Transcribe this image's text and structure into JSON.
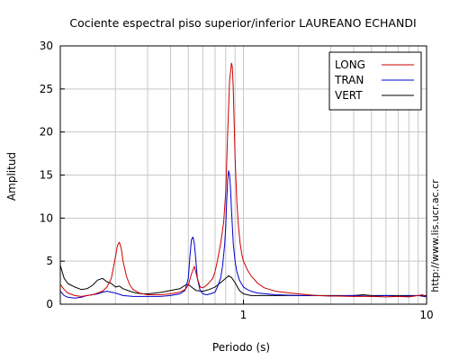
{
  "chart_data": {
    "type": "line",
    "title": "Cociente espectral piso superior/inferior LAUREANO ECHANDI",
    "xlabel": "Periodo (s)",
    "ylabel": "Amplitud",
    "xscale": "log",
    "xlim": [
      0.1,
      10
    ],
    "ylim": [
      0,
      30
    ],
    "grid": true,
    "legend_position": "top-right",
    "side_text": "http://www.lis.ucr.ac.cr",
    "x_ticks": [
      {
        "value": 1,
        "label": "1"
      },
      {
        "value": 10,
        "label": "10"
      }
    ],
    "y_ticks": [
      0,
      5,
      10,
      15,
      20,
      25,
      30
    ],
    "series": [
      {
        "name": "LONG",
        "color": "#cc0000",
        "x": [
          0.1,
          0.105,
          0.11,
          0.12,
          0.13,
          0.14,
          0.15,
          0.16,
          0.17,
          0.18,
          0.19,
          0.2,
          0.205,
          0.21,
          0.215,
          0.22,
          0.23,
          0.24,
          0.25,
          0.27,
          0.3,
          0.35,
          0.4,
          0.45,
          0.48,
          0.5,
          0.52,
          0.54,
          0.56,
          0.58,
          0.6,
          0.62,
          0.65,
          0.68,
          0.7,
          0.72,
          0.75,
          0.78,
          0.8,
          0.82,
          0.84,
          0.86,
          0.87,
          0.88,
          0.89,
          0.9,
          0.92,
          0.94,
          0.96,
          0.98,
          1.0,
          1.05,
          1.1,
          1.2,
          1.3,
          1.5,
          1.8,
          2.0,
          2.5,
          3.0,
          4.0,
          5.0,
          6.0,
          7.0,
          8.0,
          9.0,
          9.5,
          10.0
        ],
        "y": [
          2.3,
          1.7,
          1.3,
          1.0,
          0.9,
          1.0,
          1.1,
          1.3,
          1.5,
          2.0,
          3.0,
          5.5,
          6.8,
          7.2,
          6.5,
          5.0,
          3.2,
          2.2,
          1.7,
          1.3,
          1.1,
          1.1,
          1.2,
          1.4,
          1.7,
          2.2,
          3.5,
          4.4,
          3.0,
          2.0,
          1.9,
          2.1,
          2.5,
          3.0,
          3.8,
          5.0,
          7.0,
          9.5,
          13.0,
          20.0,
          26.0,
          28.0,
          27.5,
          25.0,
          21.0,
          17.0,
          12.0,
          9.0,
          7.0,
          5.8,
          5.0,
          4.0,
          3.3,
          2.4,
          1.9,
          1.5,
          1.3,
          1.2,
          1.0,
          0.95,
          0.9,
          0.9,
          0.85,
          0.9,
          0.85,
          1.0,
          1.1,
          0.8
        ]
      },
      {
        "name": "TRAN",
        "color": "#0000cc",
        "x": [
          0.1,
          0.105,
          0.11,
          0.12,
          0.13,
          0.14,
          0.15,
          0.16,
          0.17,
          0.18,
          0.19,
          0.2,
          0.22,
          0.25,
          0.3,
          0.35,
          0.4,
          0.45,
          0.48,
          0.5,
          0.51,
          0.52,
          0.53,
          0.54,
          0.55,
          0.56,
          0.58,
          0.6,
          0.63,
          0.66,
          0.7,
          0.72,
          0.75,
          0.77,
          0.79,
          0.8,
          0.81,
          0.82,
          0.83,
          0.84,
          0.85,
          0.86,
          0.87,
          0.88,
          0.9,
          0.92,
          0.95,
          1.0,
          1.05,
          1.1,
          1.2,
          1.5,
          2.0,
          2.5,
          3.0,
          4.0,
          5.0,
          6.0,
          7.0,
          8.0,
          9.0,
          10.0
        ],
        "y": [
          1.5,
          1.0,
          0.8,
          0.7,
          0.8,
          1.0,
          1.1,
          1.2,
          1.4,
          1.5,
          1.4,
          1.3,
          1.0,
          0.9,
          0.9,
          0.9,
          1.0,
          1.2,
          1.6,
          3.0,
          5.5,
          7.5,
          7.8,
          7.0,
          5.0,
          3.0,
          1.6,
          1.2,
          1.1,
          1.2,
          1.4,
          2.0,
          3.0,
          4.5,
          7.0,
          9.0,
          12.0,
          14.5,
          15.5,
          15.0,
          13.5,
          11.0,
          9.0,
          7.0,
          5.0,
          3.8,
          2.8,
          2.0,
          1.7,
          1.5,
          1.3,
          1.1,
          1.0,
          1.0,
          0.95,
          1.0,
          0.9,
          1.0,
          0.9,
          0.95,
          1.0,
          0.85
        ]
      },
      {
        "name": "VERT",
        "color": "#000000",
        "x": [
          0.1,
          0.101,
          0.103,
          0.105,
          0.11,
          0.12,
          0.13,
          0.14,
          0.15,
          0.16,
          0.17,
          0.18,
          0.19,
          0.2,
          0.21,
          0.22,
          0.24,
          0.26,
          0.28,
          0.3,
          0.33,
          0.36,
          0.4,
          0.45,
          0.48,
          0.5,
          0.52,
          0.55,
          0.6,
          0.65,
          0.7,
          0.75,
          0.8,
          0.83,
          0.86,
          0.9,
          0.95,
          1.0,
          1.1,
          1.2,
          1.5,
          2.0,
          3.0,
          4.0,
          4.5,
          5.0,
          6.0,
          8.0,
          10.0
        ],
        "y": [
          4.5,
          4.2,
          3.6,
          3.0,
          2.4,
          2.0,
          1.7,
          1.8,
          2.2,
          2.8,
          3.0,
          2.6,
          2.4,
          2.0,
          2.1,
          1.8,
          1.5,
          1.3,
          1.2,
          1.2,
          1.3,
          1.4,
          1.6,
          1.8,
          2.2,
          2.3,
          2.0,
          1.6,
          1.5,
          1.7,
          2.0,
          2.5,
          3.0,
          3.3,
          3.1,
          2.5,
          1.6,
          1.2,
          1.0,
          1.0,
          1.0,
          1.0,
          1.0,
          1.0,
          1.1,
          1.0,
          1.0,
          1.0,
          1.0
        ]
      }
    ]
  }
}
